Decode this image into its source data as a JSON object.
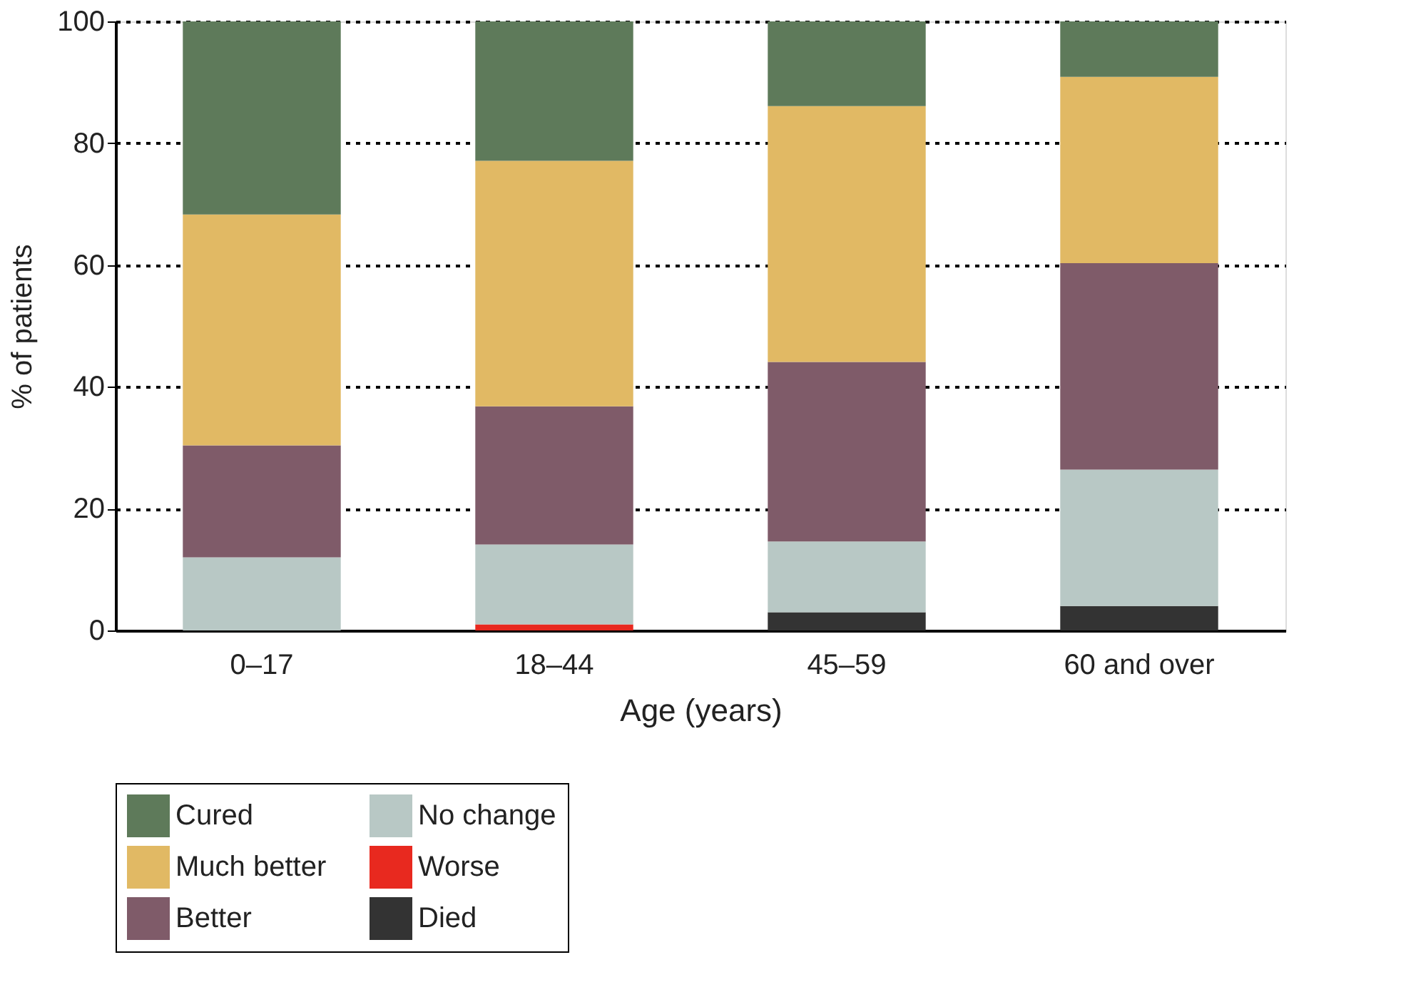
{
  "chart_data": {
    "type": "bar",
    "stacked": true,
    "xlabel": "Age (years)",
    "ylabel": "% of patients",
    "categories": [
      "0–17",
      "18–44",
      "45–59",
      "60 and over"
    ],
    "series": [
      {
        "name": "Died",
        "color": "#333333",
        "values": [
          0,
          0,
          3,
          4
        ]
      },
      {
        "name": "Worse",
        "color": "#e8291f",
        "values": [
          0,
          1,
          0,
          0
        ]
      },
      {
        "name": "No change",
        "color": "#b8c8c5",
        "values": [
          12,
          13.1,
          11.6,
          22.4
        ]
      },
      {
        "name": "Better",
        "color": "#7f5b69",
        "values": [
          18.4,
          22.7,
          29.5,
          33.9
        ]
      },
      {
        "name": "Much better",
        "color": "#e1b964",
        "values": [
          37.9,
          40.3,
          42,
          30.6
        ]
      },
      {
        "name": "Cured",
        "color": "#5e7a5a",
        "values": [
          31.7,
          22.9,
          13.9,
          9.1
        ]
      }
    ],
    "ylim": [
      0,
      100
    ],
    "yticks": [
      0,
      20,
      40,
      60,
      80,
      100
    ],
    "grid": "y",
    "legend": "bottom"
  }
}
